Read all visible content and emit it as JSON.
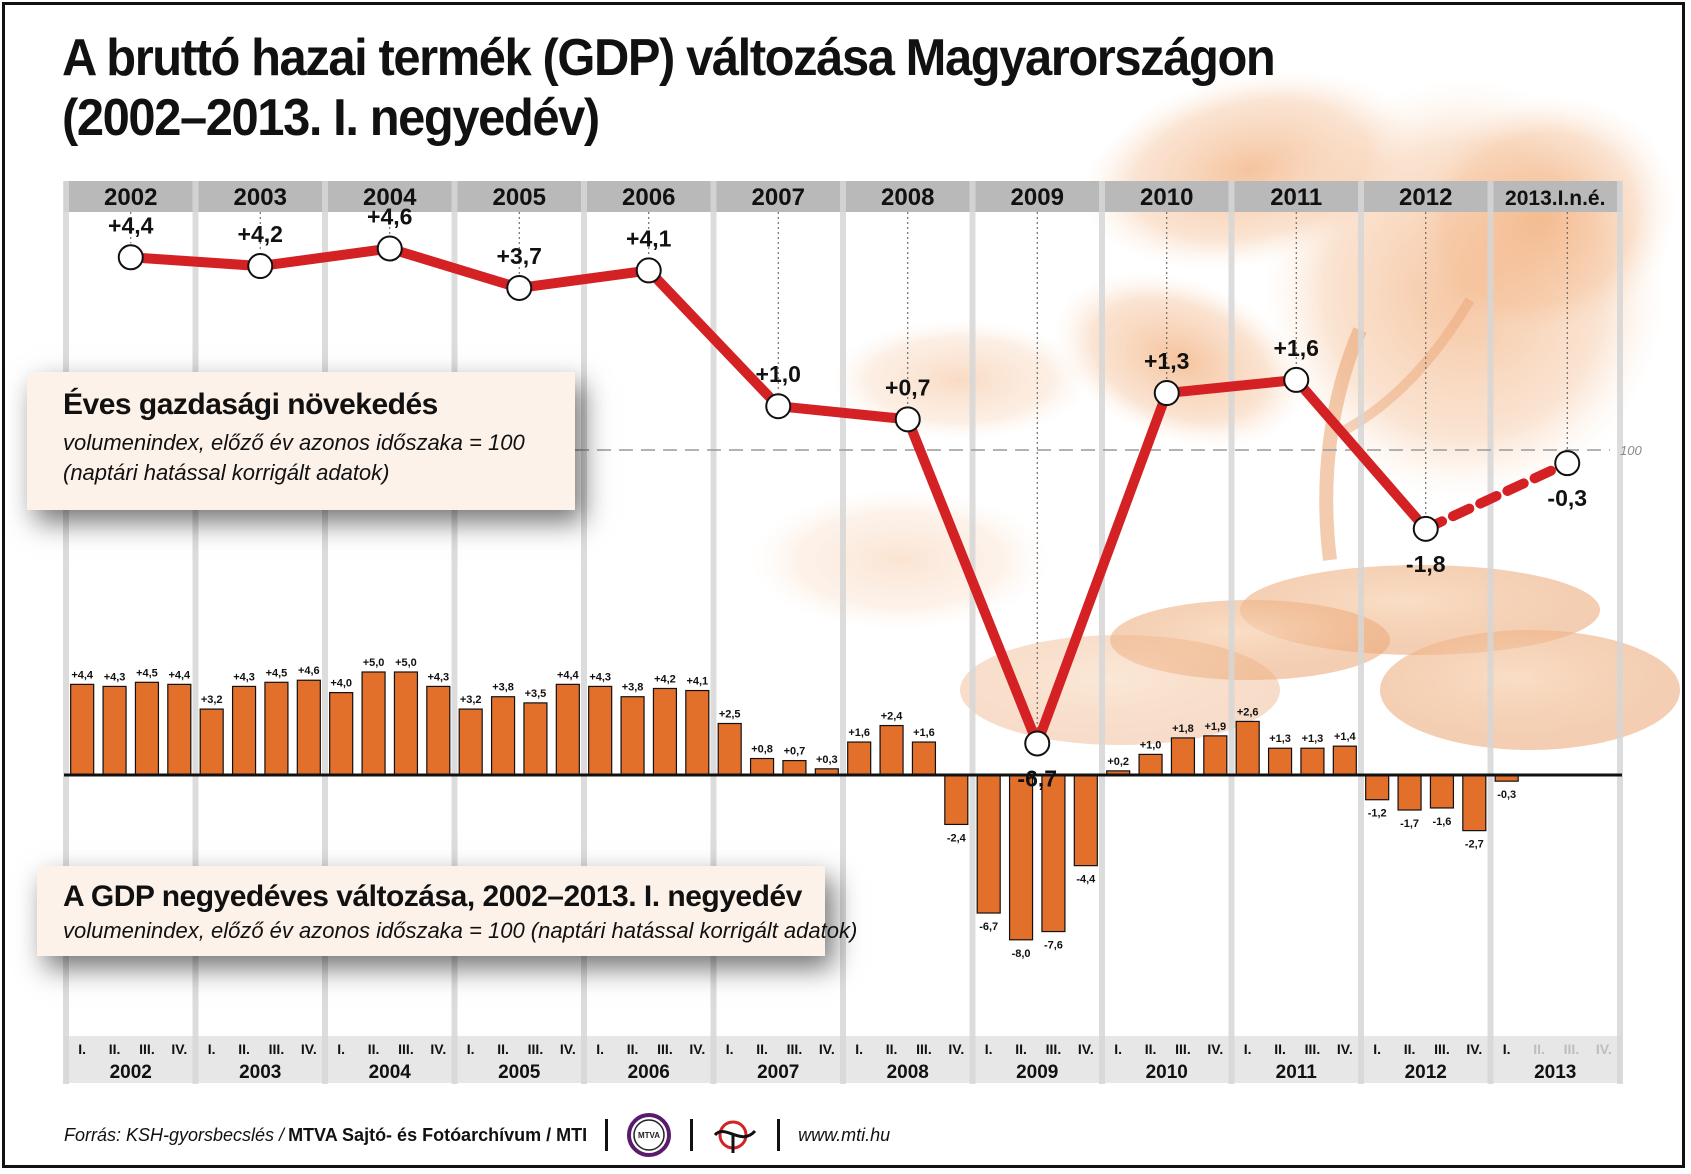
{
  "title": {
    "line1": "A bruttó hazai termék (GDP) változása Magyarországon",
    "line2": "(2002–2013. I. negyedév)"
  },
  "annual_box": {
    "heading": "Éves gazdasági növekedés",
    "sub1": "volumenindex, előző év azonos időszaka = 100",
    "sub2": "(naptári hatással korrigált adatok)"
  },
  "quarterly_box": {
    "heading": "A GDP negyedéves változása, 2002–2013. I. negyedév",
    "sub": "volumenindex, előző év azonos időszaka = 100 (naptári hatással korrigált adatok)"
  },
  "footer": {
    "source": "Forrás: KSH-gyorsbecslés / ",
    "credit": "MTVA Sajtó- és Fotóarchívum / MTI",
    "logo_text": "MTVA",
    "website": "www.mti.hu"
  },
  "colors": {
    "bar": "#e2702a",
    "line": "#d42124",
    "background_image": "#f2b07e",
    "column_header": "#b9b9b9"
  },
  "icons": [
    "mtva-logo-icon",
    "mti-logo-icon"
  ],
  "chart_data": [
    {
      "type": "line",
      "categories": [
        "2002",
        "2003",
        "2004",
        "2005",
        "2006",
        "2007",
        "2008",
        "2009",
        "2010",
        "2011",
        "2012",
        "2013.I.n.é."
      ],
      "values": [
        4.4,
        4.2,
        4.6,
        3.7,
        4.1,
        1.0,
        0.7,
        -6.7,
        1.3,
        1.6,
        -1.8,
        -0.3
      ],
      "labels": [
        "+4,4",
        "+4,2",
        "+4,6",
        "+3,7",
        "+4,1",
        "+1,0",
        "+0,7",
        "-6,7",
        "+1,3",
        "+1,6",
        "-1,8",
        "-0,3"
      ],
      "reference_line": {
        "value": 0,
        "label": "100"
      },
      "last_segment_dashed": true
    },
    {
      "type": "bar",
      "years": [
        "2002",
        "2003",
        "2004",
        "2005",
        "2006",
        "2007",
        "2008",
        "2009",
        "2010",
        "2011",
        "2012",
        "2013"
      ],
      "quarter_labels": [
        "I.",
        "II.",
        "III.",
        "IV."
      ],
      "values": [
        4.4,
        4.3,
        4.5,
        4.4,
        3.2,
        4.3,
        4.5,
        4.6,
        4.0,
        5.0,
        5.0,
        4.3,
        3.2,
        3.8,
        3.5,
        4.4,
        4.3,
        3.8,
        4.2,
        4.1,
        2.5,
        0.8,
        0.7,
        0.3,
        1.6,
        2.4,
        1.6,
        -2.4,
        -6.7,
        -8.0,
        -7.6,
        -4.4,
        0.2,
        1.0,
        1.8,
        1.9,
        2.6,
        1.3,
        1.3,
        1.4,
        -1.2,
        -1.7,
        -1.6,
        -2.7,
        -0.3
      ],
      "labels": [
        "+4,4",
        "+4,3",
        "+4,5",
        "+4,4",
        "+3,2",
        "+4,3",
        "+4,5",
        "+4,6",
        "+4,0",
        "+5,0",
        "+5,0",
        "+4,3",
        "+3,2",
        "+3,8",
        "+3,5",
        "+4,4",
        "+4,3",
        "+3,8",
        "+4,2",
        "+4,1",
        "+2,5",
        "+0,8",
        "+0,7",
        "+0,3",
        "+1,6",
        "+2,4",
        "+1,6",
        "-2,4",
        "-6,7",
        "-8,0",
        "-7,6",
        "-4,4",
        "+0,2",
        "+1,0",
        "+1,8",
        "+1,9",
        "+2,6",
        "+1,3",
        "+1,3",
        "+1,4",
        "-1,2",
        "-1,7",
        "-1,6",
        "-2,7",
        "-0,3"
      ]
    }
  ]
}
